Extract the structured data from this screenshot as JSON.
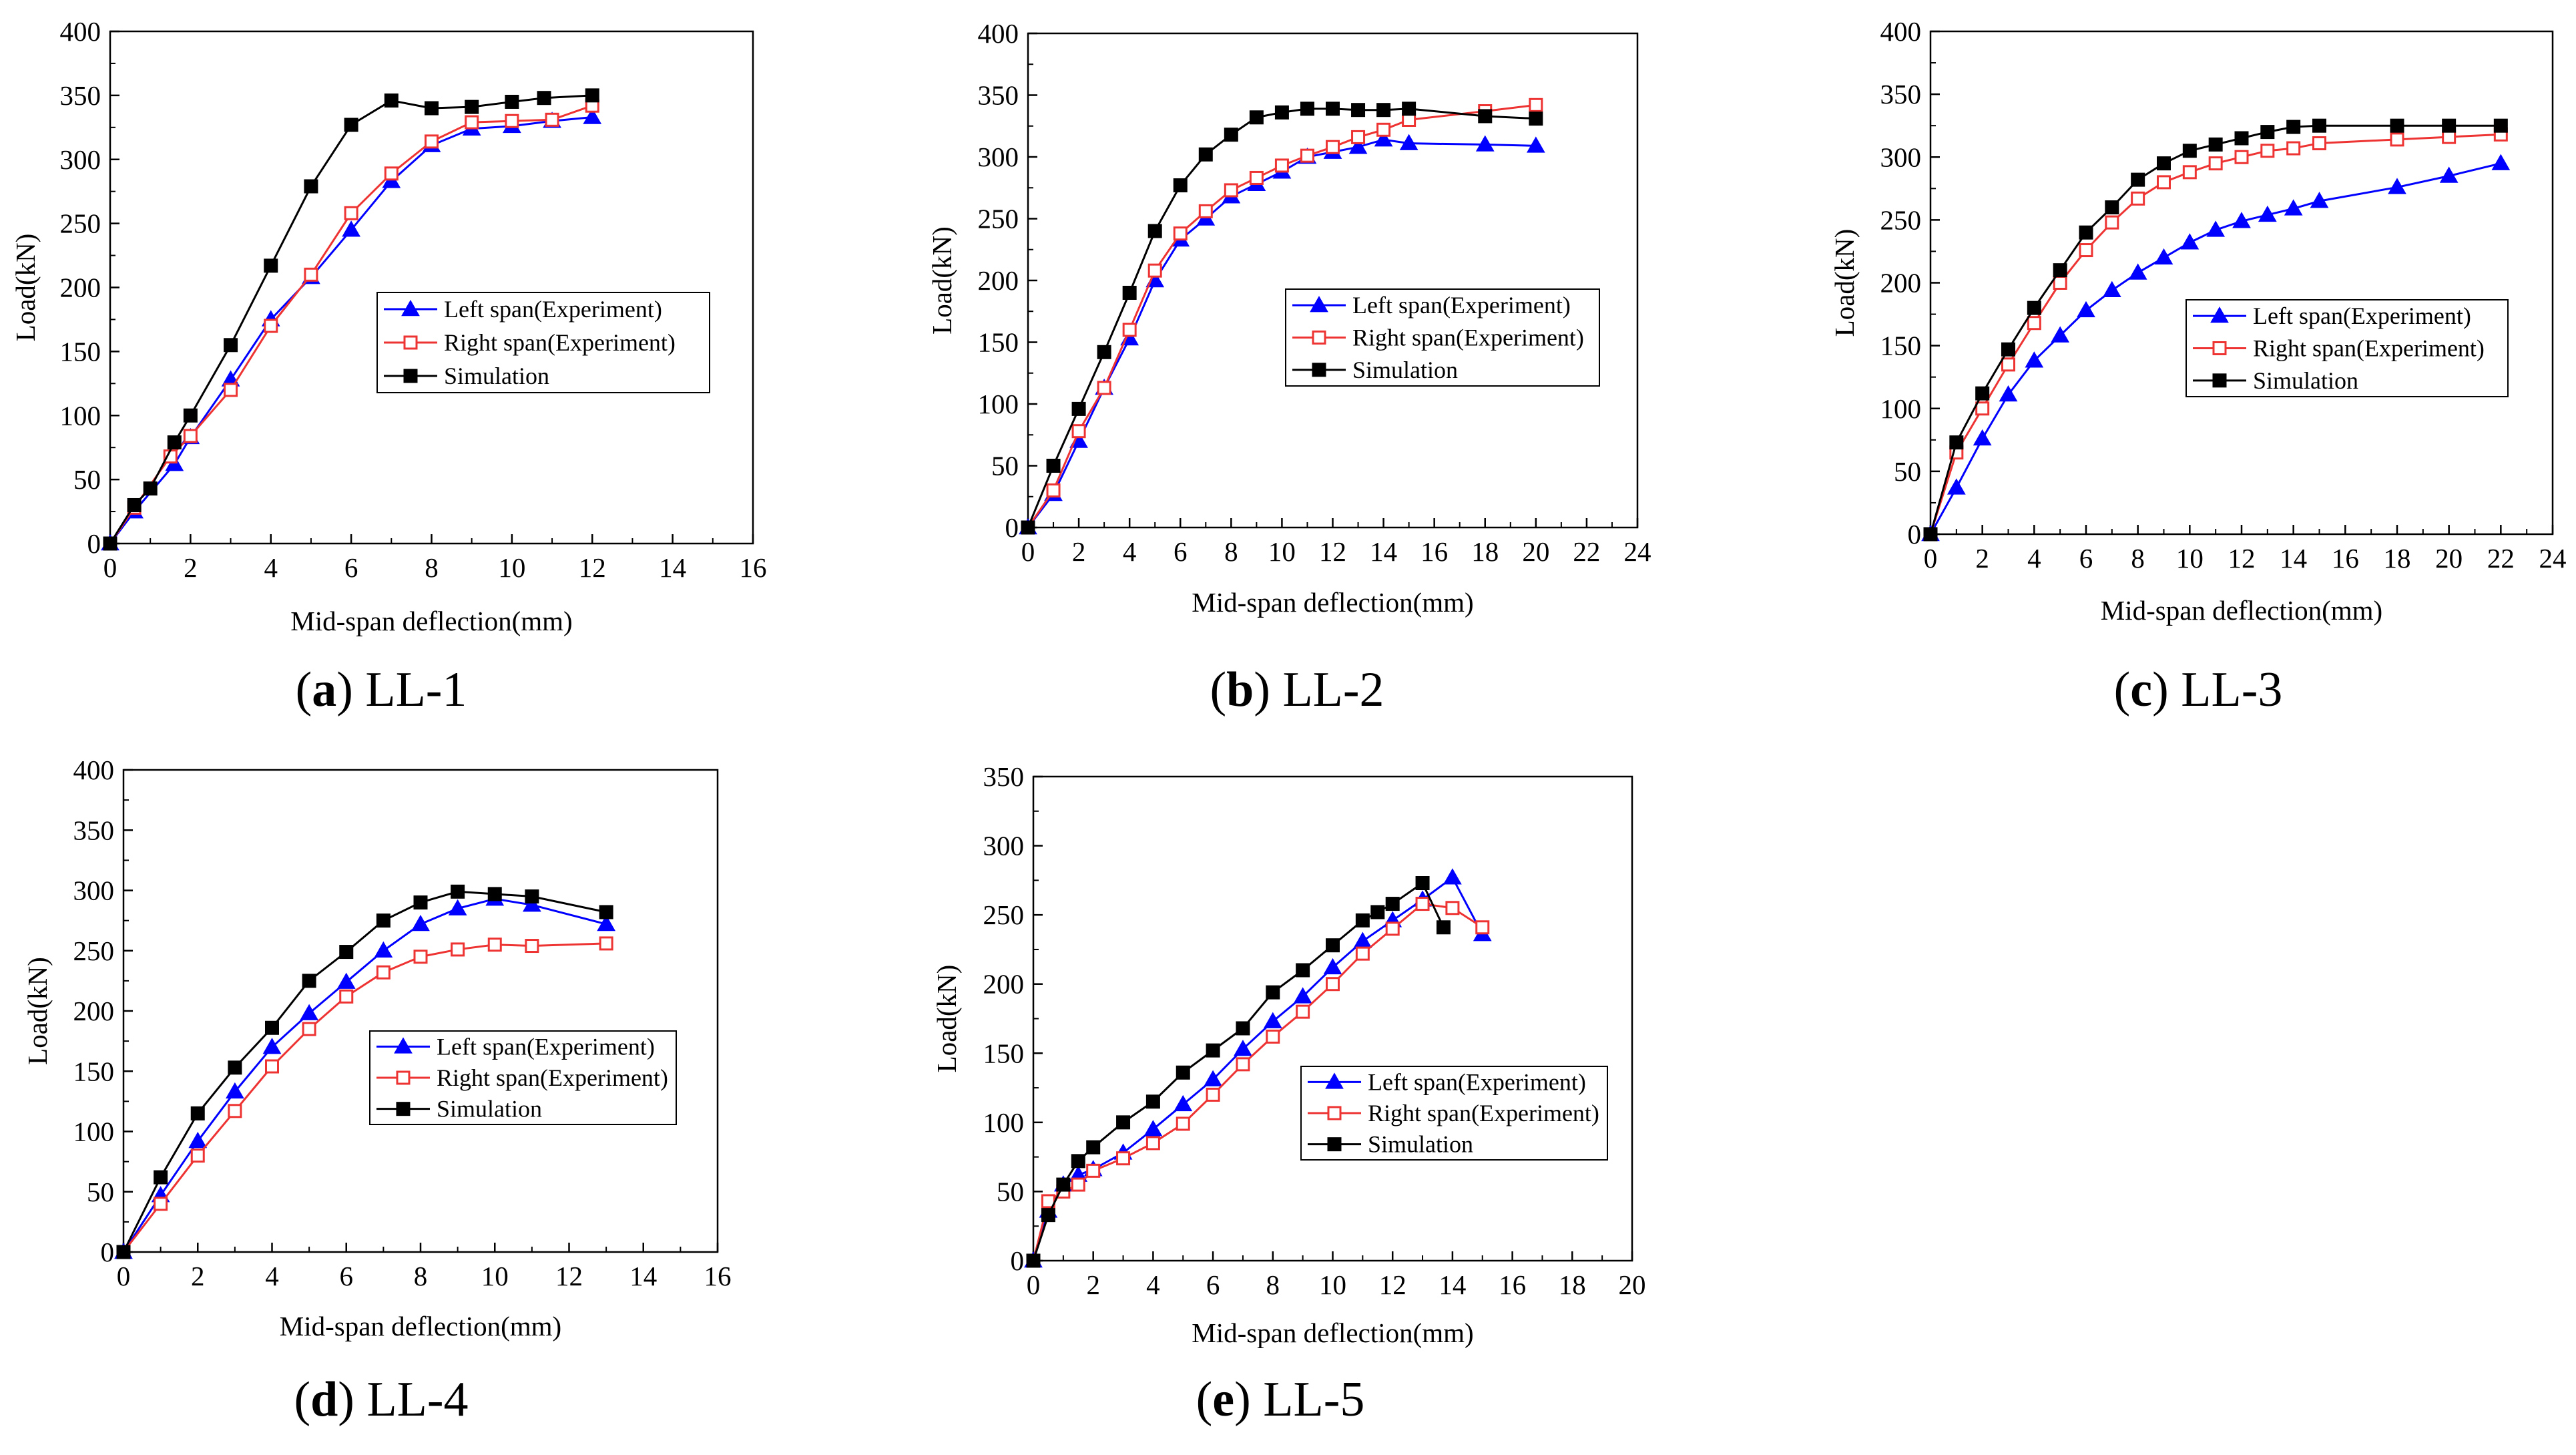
{
  "figure": {
    "type": "multi-panel load-deflection curves"
  },
  "chart_data": [
    {
      "type": "line",
      "panel_letter": "a",
      "panel_name": "LL-1",
      "xlabel": "Mid-span deflection(mm)",
      "ylabel": "Load(kN)",
      "xlim": [
        0,
        16
      ],
      "ylim": [
        0,
        400
      ],
      "xticks": [
        0,
        2,
        4,
        6,
        8,
        10,
        12,
        14,
        16
      ],
      "yticks": [
        0,
        50,
        100,
        150,
        200,
        250,
        300,
        350,
        400
      ],
      "legend_position": "center-right",
      "series": [
        {
          "name": "Left span(Experiment)",
          "color": "#0000ff",
          "marker": "triangle",
          "x": [
            0,
            0.6,
            1.6,
            2,
            3,
            4,
            5,
            6,
            7,
            8,
            9,
            10,
            11,
            12
          ],
          "y": [
            0,
            25,
            62,
            83,
            128,
            175,
            208,
            245,
            283,
            311,
            324,
            326,
            330,
            333
          ]
        },
        {
          "name": "Right span(Experiment)",
          "color": "#ee3333",
          "marker": "square-open",
          "x": [
            0,
            0.6,
            1.5,
            2,
            3,
            4,
            5,
            6,
            7,
            8,
            9,
            10,
            11,
            12
          ],
          "y": [
            0,
            28,
            68,
            84,
            120,
            170,
            210,
            258,
            289,
            314,
            329,
            330,
            331,
            342
          ]
        },
        {
          "name": "Simulation",
          "color": "#000000",
          "marker": "square",
          "x": [
            0,
            0.6,
            1,
            1.6,
            2,
            3,
            4,
            5,
            6,
            7,
            8,
            9,
            10,
            10.8,
            12
          ],
          "y": [
            0,
            30,
            43,
            79,
            100,
            155,
            217,
            279,
            327,
            346,
            340,
            341,
            345,
            348,
            350
          ]
        }
      ]
    },
    {
      "type": "line",
      "panel_letter": "b",
      "panel_name": "LL-2",
      "xlabel": "Mid-span deflection(mm)",
      "ylabel": "Load(kN)",
      "xlim": [
        0,
        24
      ],
      "ylim": [
        0,
        400
      ],
      "xticks": [
        0,
        2,
        4,
        6,
        8,
        10,
        12,
        14,
        16,
        18,
        20,
        22,
        24
      ],
      "yticks": [
        0,
        50,
        100,
        150,
        200,
        250,
        300,
        350,
        400
      ],
      "legend_position": "center-right",
      "series": [
        {
          "name": "Left span(Experiment)",
          "color": "#0000ff",
          "marker": "triangle",
          "x": [
            0,
            1,
            2,
            3,
            4,
            5,
            6,
            7,
            8,
            9,
            10,
            11,
            12,
            13,
            14,
            15,
            18,
            20
          ],
          "y": [
            0,
            27,
            70,
            113,
            153,
            200,
            233,
            250,
            268,
            278,
            288,
            300,
            304,
            308,
            314,
            311,
            310,
            309
          ]
        },
        {
          "name": "Right span(Experiment)",
          "color": "#ee3333",
          "marker": "square-open",
          "x": [
            0,
            1,
            2,
            3,
            4,
            5,
            6,
            7,
            8,
            9,
            10,
            11,
            12,
            13,
            14,
            15,
            18,
            20
          ],
          "y": [
            0,
            30,
            78,
            113,
            160,
            208,
            238,
            256,
            273,
            283,
            293,
            301,
            308,
            316,
            322,
            330,
            337,
            342
          ]
        },
        {
          "name": "Simulation",
          "color": "#000000",
          "marker": "square",
          "x": [
            0,
            1,
            2,
            3,
            4,
            5,
            6,
            7,
            8,
            9,
            10,
            11,
            12,
            13,
            14,
            15,
            18,
            20
          ],
          "y": [
            0,
            50,
            96,
            142,
            190,
            240,
            277,
            302,
            318,
            332,
            336,
            339,
            339,
            338,
            338,
            339,
            333,
            331
          ]
        }
      ]
    },
    {
      "type": "line",
      "panel_letter": "c",
      "panel_name": "LL-3",
      "xlabel": "Mid-span deflection(mm)",
      "ylabel": "Load(kN)",
      "xlim": [
        0,
        24
      ],
      "ylim": [
        0,
        400
      ],
      "xticks": [
        0,
        2,
        4,
        6,
        8,
        10,
        12,
        14,
        16,
        18,
        20,
        22,
        24
      ],
      "yticks": [
        0,
        50,
        100,
        150,
        200,
        250,
        300,
        350,
        400
      ],
      "legend_position": "center-right",
      "series": [
        {
          "name": "Left span(Experiment)",
          "color": "#0000ff",
          "marker": "triangle",
          "x": [
            0,
            1,
            2,
            3,
            4,
            5,
            6,
            7,
            8,
            9,
            10,
            11,
            12,
            13,
            14,
            15,
            18,
            20,
            22
          ],
          "y": [
            0,
            37,
            76,
            111,
            138,
            158,
            178,
            194,
            208,
            220,
            232,
            242,
            249,
            254,
            259,
            265,
            276,
            285,
            295
          ]
        },
        {
          "name": "Right span(Experiment)",
          "color": "#ee3333",
          "marker": "square-open",
          "x": [
            0,
            1,
            2,
            3,
            4,
            5,
            6,
            7,
            8,
            9,
            10,
            11,
            12,
            13,
            14,
            15,
            18,
            20,
            22
          ],
          "y": [
            0,
            65,
            100,
            135,
            168,
            200,
            226,
            248,
            267,
            280,
            288,
            295,
            300,
            305,
            307,
            311,
            314,
            316,
            318
          ]
        },
        {
          "name": "Simulation",
          "color": "#000000",
          "marker": "square",
          "x": [
            0,
            1,
            2,
            3,
            4,
            5,
            6,
            7,
            8,
            9,
            10,
            11,
            12,
            13,
            14,
            15,
            18,
            20,
            22
          ],
          "y": [
            0,
            73,
            112,
            147,
            180,
            210,
            240,
            260,
            282,
            295,
            305,
            310,
            315,
            320,
            324,
            325,
            325,
            325,
            325
          ]
        }
      ]
    },
    {
      "type": "line",
      "panel_letter": "d",
      "panel_name": "LL-4",
      "xlabel": "Mid-span deflection(mm)",
      "ylabel": "Load(kN)",
      "xlim": [
        0,
        16
      ],
      "ylim": [
        0,
        400
      ],
      "xticks": [
        0,
        2,
        4,
        6,
        8,
        10,
        12,
        14,
        16
      ],
      "yticks": [
        0,
        50,
        100,
        150,
        200,
        250,
        300,
        350,
        400
      ],
      "legend_position": "center-right",
      "series": [
        {
          "name": "Left span(Experiment)",
          "color": "#0000ff",
          "marker": "triangle",
          "x": [
            0,
            1,
            2,
            3,
            4,
            5,
            6,
            7,
            8,
            9,
            10,
            11,
            13
          ],
          "y": [
            0,
            47,
            92,
            133,
            170,
            198,
            224,
            250,
            272,
            285,
            293,
            288,
            272
          ]
        },
        {
          "name": "Right span(Experiment)",
          "color": "#ee3333",
          "marker": "square-open",
          "x": [
            0,
            1,
            2,
            3,
            4,
            5,
            6,
            7,
            8,
            9,
            10,
            11,
            13
          ],
          "y": [
            0,
            40,
            80,
            117,
            154,
            185,
            212,
            232,
            245,
            251,
            255,
            254,
            256
          ]
        },
        {
          "name": "Simulation",
          "color": "#000000",
          "marker": "square",
          "x": [
            0,
            1,
            2,
            3,
            4,
            5,
            6,
            7,
            8,
            9,
            10,
            11,
            13
          ],
          "y": [
            0,
            62,
            115,
            153,
            186,
            225,
            249,
            275,
            290,
            299,
            297,
            295,
            282
          ]
        }
      ]
    },
    {
      "type": "line",
      "panel_letter": "e",
      "panel_name": "LL-5",
      "xlabel": "Mid-span deflection(mm)",
      "ylabel": "Load(kN)",
      "xlim": [
        0,
        20
      ],
      "ylim": [
        0,
        350
      ],
      "xticks": [
        0,
        2,
        4,
        6,
        8,
        10,
        12,
        14,
        16,
        18,
        20
      ],
      "yticks": [
        0,
        50,
        100,
        150,
        200,
        250,
        300,
        350
      ],
      "legend_position": "center-right",
      "series": [
        {
          "name": "Left span(Experiment)",
          "color": "#0000ff",
          "marker": "triangle",
          "x": [
            0,
            0.5,
            1,
            1.5,
            2,
            3,
            4,
            5,
            6,
            7,
            8,
            9,
            10,
            11,
            12,
            13,
            14,
            15
          ],
          "y": [
            0,
            36,
            55,
            62,
            66,
            78,
            95,
            113,
            131,
            153,
            173,
            191,
            212,
            231,
            246,
            261,
            277,
            236
          ]
        },
        {
          "name": "Right span(Experiment)",
          "color": "#ee3333",
          "marker": "square-open",
          "x": [
            0,
            0.5,
            1,
            1.5,
            2,
            3,
            4,
            5,
            6,
            7,
            8,
            9,
            10,
            11,
            12,
            13,
            14,
            15
          ],
          "y": [
            0,
            43,
            50,
            55,
            65,
            74,
            85,
            99,
            120,
            142,
            162,
            180,
            200,
            222,
            240,
            258,
            255,
            241
          ]
        },
        {
          "name": "Simulation",
          "color": "#000000",
          "marker": "square",
          "x": [
            0,
            0.5,
            1,
            1.5,
            2,
            3,
            4,
            5,
            6,
            7,
            8,
            9,
            10,
            11,
            11.5,
            12,
            13,
            13.7
          ],
          "y": [
            0,
            33,
            55,
            72,
            82,
            100,
            115,
            136,
            152,
            168,
            194,
            210,
            228,
            246,
            252,
            258,
            273,
            241
          ]
        }
      ]
    }
  ]
}
